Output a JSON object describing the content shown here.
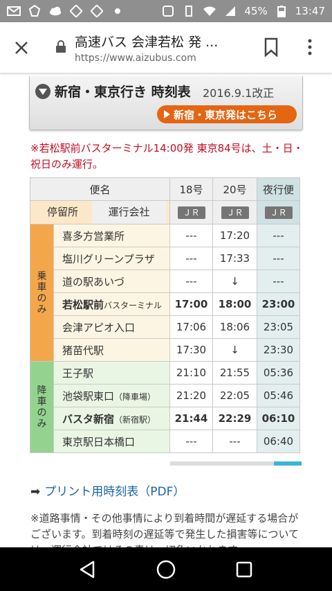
{
  "status": {
    "battery": "45%",
    "time": "13:47"
  },
  "browser": {
    "title": "高速バス 会津若松 発 ...",
    "url": "https://www.aizubus.com"
  },
  "header": {
    "title": "新宿・東京行き 時刻表",
    "revision": "2016.9.1改正",
    "link_label": "新宿・東京発はこちら"
  },
  "notice": "※若松駅前バスターミナル14:00発 東京84号は、土・日・祝日のみ運行。",
  "table": {
    "bin_label": "便名",
    "stop_label": "停留所",
    "operator_label": "運行会社",
    "columns": [
      "18号",
      "20号",
      "夜行便"
    ],
    "operators": [
      "ＪＲ",
      "ＪＲ",
      "ＪＲ"
    ],
    "boarding_label": "乗車のみ",
    "alighting_label": "降車のみ",
    "boarding_rows": [
      {
        "stop": "喜多方営業所",
        "sub": "",
        "t": [
          "---",
          "17:20",
          "---"
        ],
        "bold": false
      },
      {
        "stop": "塩川グリーンプラザ",
        "sub": "",
        "t": [
          "---",
          "17:33",
          "---"
        ],
        "bold": false
      },
      {
        "stop": "道の駅あいづ",
        "sub": "",
        "t": [
          "---",
          "↓",
          "---"
        ],
        "bold": false
      },
      {
        "stop": "若松駅前",
        "sub": "バスターミナル",
        "t": [
          "17:00",
          "18:00",
          "23:00"
        ],
        "bold": true
      },
      {
        "stop": "会津アピオ入口",
        "sub": "",
        "t": [
          "17:06",
          "18:06",
          "23:05"
        ],
        "bold": false
      },
      {
        "stop": "猪苗代駅",
        "sub": "",
        "t": [
          "17:30",
          "↓",
          "23:30"
        ],
        "bold": false
      }
    ],
    "alighting_rows": [
      {
        "stop": "王子駅",
        "sub": "",
        "t": [
          "21:10",
          "21:55",
          "05:36"
        ],
        "bold": false
      },
      {
        "stop": "池袋駅東口",
        "sub": "（降車場）",
        "t": [
          "21:20",
          "22:05",
          "05:46"
        ],
        "bold": false
      },
      {
        "stop": "バスタ新宿",
        "sub": "（新宿駅）",
        "t": [
          "21:44",
          "22:29",
          "06:10"
        ],
        "bold": true
      },
      {
        "stop": "東京駅日本橋口",
        "sub": "",
        "t": [
          "---",
          "---",
          "06:40"
        ],
        "bold": false
      }
    ]
  },
  "pdf_link": "プリント用時刻表（PDF）",
  "disclaimer": "※道路事情・その他事情により到着時間が遅延する場合がございます。到着時刻の遅延等で発生した損害等については、運行会社ではその責は一切負いかねます"
}
